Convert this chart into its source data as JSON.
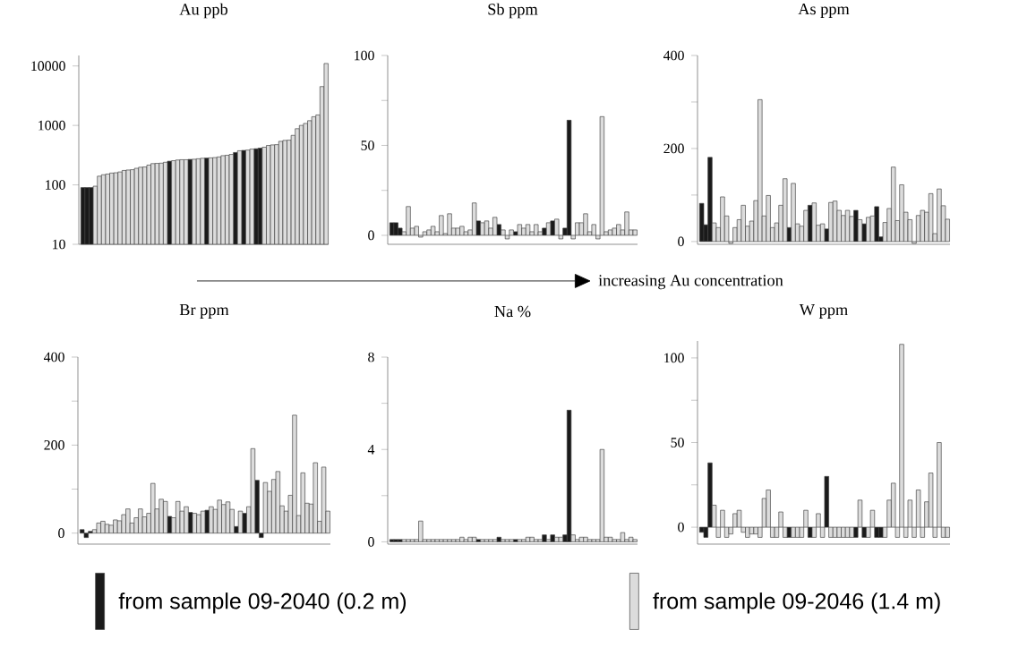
{
  "chart_data": [
    {
      "type": "bar",
      "title": "Au ppb",
      "log": true,
      "ylim": [
        10,
        15000
      ],
      "yticks": [
        10,
        100,
        1000,
        10000
      ],
      "annotations": [
        "increasing Au concentration"
      ],
      "categories": [
        null,
        null,
        null,
        null,
        null,
        null,
        null,
        null,
        null,
        null,
        null,
        null,
        null,
        null,
        null,
        null,
        null,
        null,
        null,
        null,
        null,
        null,
        null,
        null,
        null,
        null,
        null,
        null,
        null,
        null,
        null,
        null,
        null,
        null,
        null,
        null,
        null,
        null,
        null,
        null,
        null,
        null,
        null,
        null,
        null,
        null,
        null,
        null,
        null,
        null,
        null,
        null,
        null,
        null,
        null,
        null,
        null,
        null,
        null,
        null
      ],
      "series": [
        {
          "color": "#1a1a1a",
          "values": [
            90,
            90,
            90,
            null,
            null,
            null,
            null,
            null,
            null,
            null,
            null,
            null,
            null,
            null,
            null,
            null,
            null,
            null,
            null,
            null,
            null,
            250,
            null,
            null,
            null,
            null,
            268,
            null,
            null,
            null,
            282,
            null,
            null,
            null,
            null,
            null,
            null,
            350,
            null,
            380,
            null,
            null,
            405,
            415,
            null,
            null,
            null,
            null,
            null,
            null,
            null,
            null,
            null,
            null,
            null,
            null,
            null,
            null,
            null,
            null
          ]
        },
        {
          "color": "#dcdcdc",
          "values": [
            null,
            null,
            null,
            95,
            140,
            148,
            152,
            158,
            160,
            165,
            175,
            178,
            180,
            190,
            198,
            200,
            215,
            228,
            230,
            232,
            240,
            null,
            255,
            262,
            265,
            265,
            null,
            270,
            275,
            280,
            null,
            285,
            288,
            295,
            310,
            315,
            325,
            null,
            375,
            null,
            385,
            400,
            null,
            null,
            430,
            460,
            470,
            475,
            540,
            560,
            565,
            680,
            880,
            1000,
            1080,
            1200,
            1400,
            1500,
            4500,
            11000
          ]
        }
      ]
    },
    {
      "type": "bar",
      "title": "Sb ppm",
      "ylim": [
        -5,
        100
      ],
      "yticks": [
        0,
        {
          "value": 25,
          "label": null
        },
        50,
        {
          "value": 75,
          "label": null
        },
        100
      ],
      "categories": [
        null,
        null,
        null,
        null,
        null,
        null,
        null,
        null,
        null,
        null,
        null,
        null,
        null,
        null,
        null,
        null,
        null,
        null,
        null,
        null,
        null,
        null,
        null,
        null,
        null,
        null,
        null,
        null,
        null,
        null,
        null,
        null,
        null,
        null,
        null,
        null,
        null,
        null,
        null,
        null,
        null,
        null,
        null,
        null,
        null,
        null,
        null,
        null,
        null,
        null,
        null,
        null,
        null,
        null,
        null,
        null,
        null,
        null,
        null,
        null
      ],
      "series": [
        {
          "color": "#1a1a1a",
          "values": [
            7,
            7,
            4,
            null,
            null,
            null,
            null,
            null,
            null,
            null,
            null,
            null,
            null,
            null,
            null,
            null,
            null,
            null,
            null,
            null,
            null,
            8,
            null,
            null,
            null,
            null,
            6,
            null,
            null,
            null,
            2,
            null,
            null,
            null,
            null,
            null,
            null,
            4,
            null,
            8,
            null,
            null,
            4,
            64,
            null,
            null,
            null,
            null,
            null,
            null,
            null,
            null,
            null,
            null,
            null,
            null,
            null,
            null,
            null,
            null
          ]
        },
        {
          "color": "#dcdcdc",
          "values": [
            null,
            null,
            null,
            2,
            16,
            4,
            5,
            -1,
            2,
            3,
            5,
            2,
            11,
            1,
            12,
            4,
            4,
            5,
            2,
            3,
            18,
            null,
            7,
            8,
            4,
            10,
            null,
            3,
            -2,
            3,
            null,
            6,
            4,
            6,
            2,
            6,
            2,
            null,
            7,
            null,
            9,
            -2,
            null,
            null,
            -2,
            7,
            7,
            12,
            2,
            6,
            -2,
            66,
            2,
            3,
            4,
            6,
            3,
            13,
            3,
            3
          ]
        }
      ]
    },
    {
      "type": "bar",
      "title": "As ppm",
      "ylim": [
        -6,
        400
      ],
      "yticks": [
        0,
        {
          "value": 100,
          "label": null
        },
        200,
        {
          "value": 300,
          "label": null
        },
        400
      ],
      "categories": [
        null,
        null,
        null,
        null,
        null,
        null,
        null,
        null,
        null,
        null,
        null,
        null,
        null,
        null,
        null,
        null,
        null,
        null,
        null,
        null,
        null,
        null,
        null,
        null,
        null,
        null,
        null,
        null,
        null,
        null,
        null,
        null,
        null,
        null,
        null,
        null,
        null,
        null,
        null,
        null,
        null,
        null,
        null,
        null,
        null,
        null,
        null,
        null,
        null,
        null,
        null,
        null,
        null,
        null,
        null,
        null,
        null,
        null,
        null,
        null
      ],
      "series": [
        {
          "color": "#1a1a1a",
          "values": [
            82,
            36,
            181,
            null,
            null,
            null,
            null,
            null,
            null,
            null,
            null,
            null,
            null,
            null,
            null,
            null,
            null,
            null,
            null,
            null,
            null,
            30,
            null,
            null,
            null,
            null,
            78,
            null,
            null,
            null,
            27,
            null,
            null,
            null,
            null,
            null,
            null,
            67,
            null,
            38,
            null,
            null,
            75,
            10,
            null,
            null,
            null,
            null,
            null,
            null,
            null,
            null,
            null,
            null,
            null,
            null,
            null,
            null,
            null,
            null
          ]
        },
        {
          "color": "#dcdcdc",
          "values": [
            null,
            null,
            null,
            40,
            30,
            96,
            55,
            -4,
            30,
            47,
            78,
            33,
            44,
            88,
            305,
            55,
            99,
            30,
            40,
            78,
            135,
            null,
            125,
            38,
            33,
            67,
            null,
            83,
            35,
            38,
            null,
            84,
            87,
            67,
            56,
            67,
            54,
            null,
            47,
            null,
            52,
            55,
            null,
            null,
            41,
            71,
            160,
            45,
            122,
            63,
            47,
            -4,
            56,
            67,
            63,
            103,
            17,
            113,
            77,
            48
          ]
        }
      ]
    },
    {
      "type": "bar",
      "title": "Br ppm",
      "ylim": [
        -25,
        400
      ],
      "yticks": [
        0,
        {
          "value": 100,
          "label": null
        },
        200,
        {
          "value": 300,
          "label": null
        },
        400
      ],
      "categories": [
        null,
        null,
        null,
        null,
        null,
        null,
        null,
        null,
        null,
        null,
        null,
        null,
        null,
        null,
        null,
        null,
        null,
        null,
        null,
        null,
        null,
        null,
        null,
        null,
        null,
        null,
        null,
        null,
        null,
        null,
        null,
        null,
        null,
        null,
        null,
        null,
        null,
        null,
        null,
        null,
        null,
        null,
        null,
        null,
        null,
        null,
        null,
        null,
        null,
        null,
        null,
        null,
        null,
        null,
        null,
        null,
        null,
        null,
        null,
        null
      ],
      "series": [
        {
          "color": "#1a1a1a",
          "values": [
            8,
            -10,
            4,
            null,
            null,
            null,
            null,
            null,
            null,
            null,
            null,
            null,
            null,
            null,
            null,
            null,
            null,
            null,
            null,
            null,
            null,
            38,
            null,
            null,
            null,
            null,
            47,
            null,
            null,
            null,
            52,
            null,
            null,
            null,
            null,
            null,
            null,
            15,
            null,
            45,
            null,
            null,
            120,
            -10,
            null,
            null,
            null,
            null,
            null,
            null,
            null,
            null,
            null,
            null,
            null,
            null,
            null,
            null,
            null,
            null
          ]
        },
        {
          "color": "#dcdcdc",
          "values": [
            null,
            null,
            null,
            8,
            23,
            27,
            20,
            18,
            30,
            28,
            42,
            55,
            23,
            35,
            55,
            37,
            45,
            113,
            55,
            77,
            72,
            null,
            35,
            72,
            50,
            60,
            null,
            45,
            42,
            50,
            null,
            60,
            54,
            75,
            65,
            71,
            54,
            null,
            50,
            null,
            60,
            192,
            null,
            null,
            115,
            95,
            122,
            140,
            62,
            50,
            86,
            268,
            40,
            137,
            68,
            66,
            160,
            27,
            150,
            50
          ]
        }
      ]
    },
    {
      "type": "bar",
      "title": "Na %",
      "ylim": [
        -0.1,
        8
      ],
      "yticks": [
        0,
        {
          "value": 2,
          "label": null
        },
        4,
        {
          "value": 6,
          "label": null
        },
        8
      ],
      "legend": "bottom",
      "categories": [
        null,
        null,
        null,
        null,
        null,
        null,
        null,
        null,
        null,
        null,
        null,
        null,
        null,
        null,
        null,
        null,
        null,
        null,
        null,
        null,
        null,
        null,
        null,
        null,
        null,
        null,
        null,
        null,
        null,
        null,
        null,
        null,
        null,
        null,
        null,
        null,
        null,
        null,
        null,
        null,
        null,
        null,
        null,
        null,
        null,
        null,
        null,
        null,
        null,
        null,
        null,
        null,
        null,
        null,
        null,
        null,
        null,
        null,
        null,
        null
      ],
      "series": [
        {
          "name": "from sample 09-2040 (0.2 m)",
          "color": "#1a1a1a",
          "values": [
            0.1,
            0.1,
            0.1,
            null,
            null,
            null,
            null,
            null,
            null,
            null,
            null,
            null,
            null,
            null,
            null,
            null,
            null,
            null,
            null,
            null,
            null,
            0.1,
            null,
            null,
            null,
            null,
            0.2,
            null,
            null,
            null,
            0.1,
            null,
            null,
            null,
            null,
            null,
            null,
            0.3,
            null,
            0.3,
            null,
            null,
            0.3,
            5.7,
            null,
            null,
            null,
            null,
            null,
            null,
            null,
            null,
            null,
            null,
            null,
            null,
            null,
            null,
            null,
            null
          ]
        },
        {
          "name": "from sample 09-2046 (1.4 m)",
          "color": "#dcdcdc",
          "values": [
            null,
            null,
            null,
            0.1,
            0.1,
            0.1,
            0.1,
            0.9,
            0.1,
            0.1,
            0.1,
            0.1,
            0.1,
            0.1,
            0.1,
            0.1,
            0.1,
            0.2,
            0.1,
            0.2,
            0.2,
            null,
            0.1,
            0.1,
            0.1,
            0.1,
            null,
            0.1,
            0.1,
            0.1,
            null,
            0.1,
            0.1,
            0.2,
            0.2,
            0.1,
            0.1,
            null,
            0.1,
            null,
            0.2,
            0.2,
            null,
            null,
            0.3,
            0.1,
            0.2,
            0.2,
            0.1,
            0.1,
            0.1,
            4.0,
            0.2,
            0.2,
            0.1,
            0.1,
            0.4,
            0.1,
            0.2,
            0.1
          ]
        }
      ]
    },
    {
      "type": "bar",
      "title": "W ppm",
      "ylim": [
        -10,
        110
      ],
      "yticks": [
        0,
        {
          "value": 25,
          "label": null
        },
        50,
        {
          "value": 75,
          "label": null
        },
        100
      ],
      "categories": [
        null,
        null,
        null,
        null,
        null,
        null,
        null,
        null,
        null,
        null,
        null,
        null,
        null,
        null,
        null,
        null,
        null,
        null,
        null,
        null,
        null,
        null,
        null,
        null,
        null,
        null,
        null,
        null,
        null,
        null,
        null,
        null,
        null,
        null,
        null,
        null,
        null,
        null,
        null,
        null,
        null,
        null,
        null,
        null,
        null,
        null,
        null,
        null,
        null,
        null,
        null,
        null,
        null,
        null,
        null,
        null,
        null,
        null,
        null,
        null
      ],
      "series": [
        {
          "color": "#1a1a1a",
          "values": [
            -3,
            -6,
            38,
            null,
            null,
            null,
            null,
            null,
            null,
            null,
            null,
            null,
            null,
            null,
            null,
            null,
            null,
            null,
            null,
            null,
            null,
            -6,
            null,
            null,
            null,
            null,
            -6,
            null,
            null,
            null,
            30,
            null,
            null,
            null,
            null,
            null,
            null,
            -6,
            null,
            -6,
            null,
            null,
            -6,
            -6,
            null,
            null,
            null,
            null,
            null,
            null,
            null,
            null,
            null,
            null,
            null,
            null,
            null,
            null,
            null,
            null
          ]
        },
        {
          "color": "#dcdcdc",
          "values": [
            null,
            null,
            null,
            13,
            -6,
            10,
            -6,
            -4,
            8,
            10,
            -3,
            -6,
            -4,
            -4,
            -6,
            17,
            22,
            -6,
            -6,
            9,
            -6,
            null,
            -6,
            -6,
            -6,
            10,
            null,
            -6,
            8,
            -6,
            null,
            -6,
            -6,
            -6,
            -6,
            -6,
            -6,
            null,
            16,
            null,
            -6,
            10,
            null,
            null,
            -6,
            16,
            26,
            -6,
            108,
            -6,
            16,
            -6,
            22,
            -6,
            15,
            32,
            -6,
            50,
            -6,
            -6
          ]
        }
      ]
    }
  ]
}
